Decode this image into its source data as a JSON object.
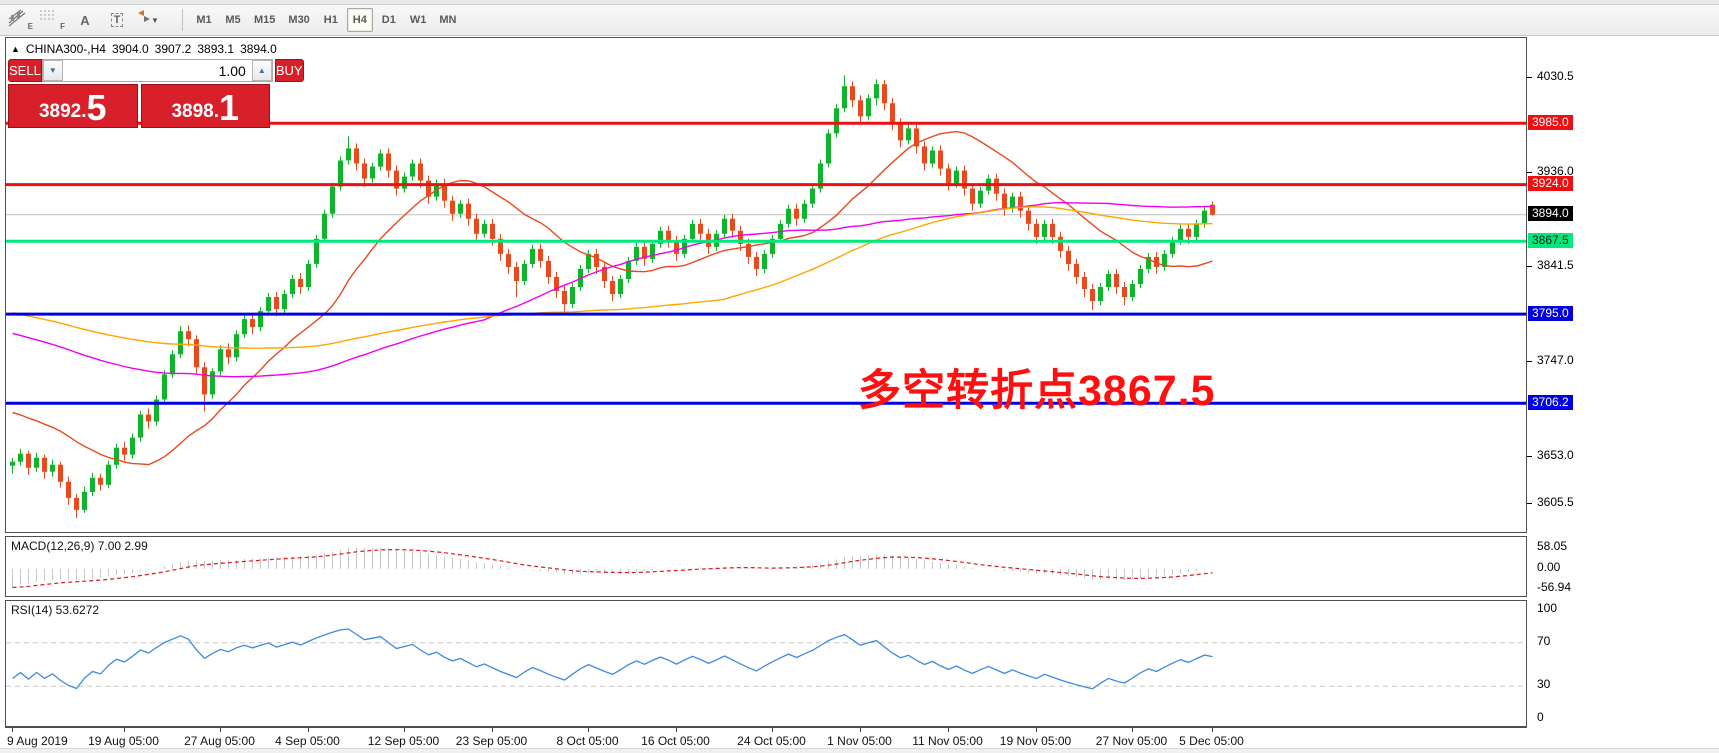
{
  "toolbar": {
    "tools": [
      {
        "letter": "E"
      },
      {
        "letter": "F"
      },
      {
        "letter": "A"
      },
      {
        "letter": "T"
      },
      {
        "letter": ""
      }
    ],
    "timeframes": [
      "M1",
      "M5",
      "M15",
      "M30",
      "H1",
      "H4",
      "D1",
      "W1",
      "MN"
    ],
    "active_timeframe": "H4"
  },
  "symbol_bar": {
    "marker": "▲",
    "name": "CHINA300-,H4",
    "open": "3904.0",
    "high": "3907.2",
    "low": "3893.1",
    "close": "3894.0"
  },
  "trade_panel": {
    "sell_label": "SELL",
    "buy_label": "BUY",
    "volume": "1.00",
    "spin_down": "▼",
    "spin_up": "▲",
    "sell_price_main": "3892.",
    "sell_price_big": "5",
    "buy_price_main": "3898.",
    "buy_price_big": "1"
  },
  "annotation": {
    "text": "多空转折点3867.5",
    "color": "#ff0f0f"
  },
  "colors": {
    "bull": "#0fb32c",
    "bear": "#e8491e",
    "ma_fast": "#e8491e",
    "ma_mid": "#ee00ee",
    "ma_slow": "#ffa500",
    "macd_hist": "#c6c6c6",
    "macd_signal": "#e01818",
    "rsi_line": "#3c8be0",
    "grid_dash": "#c8c8c8",
    "current_line": "#c0c0c0"
  },
  "chart_data": {
    "type": "candlestick",
    "symbol": "CHINA300-",
    "timeframe": "H4",
    "y_axis": {
      "min": 3578,
      "max": 4070,
      "ticks": [
        "4030.5",
        "3936.0",
        "3841.5",
        "3747.0",
        "3653.0",
        "3605.5"
      ]
    },
    "hlines": [
      {
        "price": 3985.0,
        "label": "3985.0",
        "color": "#ee1010",
        "width": 3,
        "badge_bg": "#ee1010",
        "badge_fg": "#ffffff"
      },
      {
        "price": 3924.0,
        "label": "3924.0",
        "color": "#ee1010",
        "width": 3,
        "badge_bg": "#ee1010",
        "badge_fg": "#ffffff"
      },
      {
        "price": 3894.0,
        "label": "3894.0",
        "color": "#c0c0c0",
        "width": 1,
        "badge_bg": "#000000",
        "badge_fg": "#ffffff"
      },
      {
        "price": 3867.5,
        "label": "3867.5",
        "color": "#00e97c",
        "width": 3,
        "badge_bg": "#00e97c",
        "badge_fg": "#1a1a1a"
      },
      {
        "price": 3795.0,
        "label": "3795.0",
        "color": "#0000e0",
        "width": 3,
        "badge_bg": "#0000e0",
        "badge_fg": "#ffffff"
      },
      {
        "price": 3706.2,
        "label": "3706.2",
        "color": "#0000e0",
        "width": 3,
        "badge_bg": "#0000e0",
        "badge_fg": "#ffffff"
      }
    ],
    "moving_averages": [
      {
        "period": 18,
        "seed": 3700,
        "color": "#e8491e"
      },
      {
        "period": 60,
        "seed": 3778,
        "color": "#ee00ee"
      },
      {
        "period": 90,
        "seed": 3798,
        "color": "#ffa500"
      }
    ],
    "macd": {
      "label": "MACD(12,26,9) 7.00 2.99",
      "fast": 12,
      "slow": 26,
      "signal": 9,
      "seed_fast": 3630,
      "seed_slow": 3685,
      "seed_signal": -52,
      "axis": [
        {
          "v": 58.05,
          "t": "58.05"
        },
        {
          "v": 0,
          "t": "0.00"
        },
        {
          "v": -56.94,
          "t": "-56.94"
        }
      ]
    },
    "rsi": {
      "label": "RSI(14) 53.6272",
      "period": 14,
      "seed_gain": 2.6,
      "seed_loss": 4.4,
      "axis": [
        {
          "v": 100,
          "t": "100"
        },
        {
          "v": 70,
          "t": "70"
        },
        {
          "v": 30,
          "t": "30"
        },
        {
          "v": 0,
          "t": "0"
        }
      ],
      "dashed_levels": [
        70,
        30
      ]
    },
    "x_labels": [
      {
        "text": "9 Aug 2019",
        "i": 0
      },
      {
        "text": "19 Aug 05:00",
        "i": 14
      },
      {
        "text": "27 Aug 05:00",
        "i": 26
      },
      {
        "text": "4 Sep 05:00",
        "i": 37
      },
      {
        "text": "12 Sep 05:00",
        "i": 49
      },
      {
        "text": "23 Sep 05:00",
        "i": 60
      },
      {
        "text": "8 Oct 05:00",
        "i": 72
      },
      {
        "text": "16 Oct 05:00",
        "i": 83
      },
      {
        "text": "24 Oct 05:00",
        "i": 95
      },
      {
        "text": "1 Nov 05:00",
        "i": 106
      },
      {
        "text": "11 Nov 05:00",
        "i": 117
      },
      {
        "text": "19 Nov 05:00",
        "i": 128
      },
      {
        "text": "27 Nov 05:00",
        "i": 140
      },
      {
        "text": "5 Dec 05:00",
        "i": 150
      }
    ],
    "ohlc": [
      [
        3644,
        3652,
        3636,
        3648
      ],
      [
        3648,
        3661,
        3644,
        3656
      ],
      [
        3656,
        3659,
        3635,
        3642
      ],
      [
        3642,
        3657,
        3638,
        3652
      ],
      [
        3652,
        3655,
        3631,
        3638
      ],
      [
        3638,
        3650,
        3633,
        3645
      ],
      [
        3645,
        3648,
        3622,
        3628
      ],
      [
        3628,
        3633,
        3605,
        3612
      ],
      [
        3612,
        3616,
        3592,
        3600
      ],
      [
        3600,
        3623,
        3597,
        3618
      ],
      [
        3618,
        3637,
        3614,
        3632
      ],
      [
        3632,
        3636,
        3619,
        3625
      ],
      [
        3625,
        3649,
        3622,
        3645
      ],
      [
        3645,
        3666,
        3641,
        3662
      ],
      [
        3662,
        3668,
        3649,
        3655
      ],
      [
        3655,
        3676,
        3651,
        3672
      ],
      [
        3672,
        3699,
        3668,
        3695
      ],
      [
        3695,
        3701,
        3681,
        3688
      ],
      [
        3688,
        3714,
        3684,
        3710
      ],
      [
        3710,
        3739,
        3706,
        3735
      ],
      [
        3735,
        3759,
        3731,
        3755
      ],
      [
        3755,
        3783,
        3751,
        3778
      ],
      [
        3778,
        3784,
        3763,
        3770
      ],
      [
        3770,
        3774,
        3736,
        3742
      ],
      [
        3742,
        3747,
        3698,
        3715
      ],
      [
        3715,
        3741,
        3711,
        3738
      ],
      [
        3738,
        3764,
        3734,
        3760
      ],
      [
        3760,
        3766,
        3745,
        3752
      ],
      [
        3752,
        3779,
        3748,
        3775
      ],
      [
        3775,
        3794,
        3771,
        3790
      ],
      [
        3790,
        3796,
        3775,
        3782
      ],
      [
        3782,
        3802,
        3778,
        3798
      ],
      [
        3798,
        3816,
        3794,
        3812
      ],
      [
        3812,
        3817,
        3793,
        3800
      ],
      [
        3800,
        3819,
        3796,
        3815
      ],
      [
        3815,
        3834,
        3811,
        3830
      ],
      [
        3830,
        3836,
        3815,
        3822
      ],
      [
        3822,
        3849,
        3818,
        3845
      ],
      [
        3845,
        3874,
        3841,
        3870
      ],
      [
        3870,
        3899,
        3866,
        3895
      ],
      [
        3895,
        3926,
        3891,
        3922
      ],
      [
        3922,
        3952,
        3918,
        3948
      ],
      [
        3948,
        3972,
        3944,
        3960
      ],
      [
        3960,
        3965,
        3938,
        3945
      ],
      [
        3945,
        3950,
        3922,
        3930
      ],
      [
        3930,
        3946,
        3926,
        3942
      ],
      [
        3942,
        3959,
        3938,
        3955
      ],
      [
        3955,
        3960,
        3931,
        3938
      ],
      [
        3938,
        3943,
        3913,
        3920
      ],
      [
        3920,
        3936,
        3916,
        3932
      ],
      [
        3932,
        3949,
        3928,
        3945
      ],
      [
        3945,
        3950,
        3921,
        3928
      ],
      [
        3928,
        3933,
        3905,
        3912
      ],
      [
        3912,
        3929,
        3908,
        3925
      ],
      [
        3925,
        3930,
        3901,
        3908
      ],
      [
        3908,
        3913,
        3888,
        3895
      ],
      [
        3895,
        3909,
        3891,
        3905
      ],
      [
        3905,
        3910,
        3883,
        3890
      ],
      [
        3890,
        3895,
        3868,
        3875
      ],
      [
        3875,
        3889,
        3871,
        3885
      ],
      [
        3885,
        3890,
        3863,
        3870
      ],
      [
        3870,
        3875,
        3848,
        3855
      ],
      [
        3855,
        3860,
        3835,
        3842
      ],
      [
        3842,
        3847,
        3812,
        3828
      ],
      [
        3828,
        3849,
        3824,
        3845
      ],
      [
        3845,
        3864,
        3841,
        3860
      ],
      [
        3860,
        3865,
        3841,
        3848
      ],
      [
        3848,
        3853,
        3825,
        3832
      ],
      [
        3832,
        3837,
        3811,
        3818
      ],
      [
        3818,
        3823,
        3796,
        3805
      ],
      [
        3805,
        3826,
        3801,
        3822
      ],
      [
        3822,
        3844,
        3818,
        3840
      ],
      [
        3840,
        3859,
        3836,
        3855
      ],
      [
        3855,
        3860,
        3835,
        3842
      ],
      [
        3842,
        3847,
        3821,
        3828
      ],
      [
        3828,
        3833,
        3808,
        3815
      ],
      [
        3815,
        3834,
        3811,
        3830
      ],
      [
        3830,
        3852,
        3826,
        3848
      ],
      [
        3848,
        3866,
        3844,
        3862
      ],
      [
        3862,
        3867,
        3843,
        3850
      ],
      [
        3850,
        3869,
        3846,
        3865
      ],
      [
        3865,
        3882,
        3861,
        3878
      ],
      [
        3878,
        3883,
        3861,
        3868
      ],
      [
        3868,
        3873,
        3848,
        3855
      ],
      [
        3855,
        3874,
        3851,
        3870
      ],
      [
        3870,
        3889,
        3866,
        3885
      ],
      [
        3885,
        3890,
        3868,
        3875
      ],
      [
        3875,
        3880,
        3855,
        3862
      ],
      [
        3862,
        3879,
        3858,
        3875
      ],
      [
        3875,
        3894,
        3871,
        3890
      ],
      [
        3890,
        3895,
        3871,
        3878
      ],
      [
        3878,
        3883,
        3858,
        3865
      ],
      [
        3865,
        3870,
        3845,
        3852
      ],
      [
        3852,
        3857,
        3833,
        3840
      ],
      [
        3840,
        3859,
        3836,
        3855
      ],
      [
        3855,
        3874,
        3851,
        3870
      ],
      [
        3870,
        3889,
        3866,
        3885
      ],
      [
        3885,
        3904,
        3881,
        3900
      ],
      [
        3900,
        3905,
        3883,
        3890
      ],
      [
        3890,
        3909,
        3886,
        3905
      ],
      [
        3905,
        3924,
        3901,
        3920
      ],
      [
        3920,
        3949,
        3916,
        3945
      ],
      [
        3945,
        3979,
        3941,
        3975
      ],
      [
        3975,
        4004,
        3971,
        4000
      ],
      [
        4000,
        4033,
        3996,
        4022
      ],
      [
        4022,
        4027,
        4001,
        4008
      ],
      [
        4008,
        4013,
        3985,
        3992
      ],
      [
        3992,
        4014,
        3988,
        4010
      ],
      [
        4010,
        4029,
        4003,
        4024
      ],
      [
        4024,
        4028,
        3998,
        4005
      ],
      [
        4005,
        4010,
        3978,
        3985
      ],
      [
        3985,
        3990,
        3961,
        3968
      ],
      [
        3968,
        3984,
        3964,
        3980
      ],
      [
        3980,
        3985,
        3955,
        3962
      ],
      [
        3962,
        3967,
        3938,
        3945
      ],
      [
        3945,
        3962,
        3941,
        3958
      ],
      [
        3958,
        3963,
        3933,
        3940
      ],
      [
        3940,
        3945,
        3918,
        3925
      ],
      [
        3925,
        3942,
        3921,
        3938
      ],
      [
        3938,
        3943,
        3913,
        3920
      ],
      [
        3920,
        3925,
        3898,
        3905
      ],
      [
        3905,
        3922,
        3901,
        3918
      ],
      [
        3918,
        3934,
        3914,
        3930
      ],
      [
        3930,
        3935,
        3908,
        3915
      ],
      [
        3915,
        3920,
        3893,
        3900
      ],
      [
        3900,
        3916,
        3896,
        3912
      ],
      [
        3912,
        3917,
        3891,
        3898
      ],
      [
        3898,
        3903,
        3878,
        3885
      ],
      [
        3885,
        3890,
        3865,
        3872
      ],
      [
        3872,
        3889,
        3868,
        3885
      ],
      [
        3885,
        3890,
        3865,
        3872
      ],
      [
        3872,
        3877,
        3851,
        3858
      ],
      [
        3858,
        3863,
        3838,
        3845
      ],
      [
        3845,
        3850,
        3825,
        3832
      ],
      [
        3832,
        3837,
        3812,
        3820
      ],
      [
        3820,
        3825,
        3799,
        3808
      ],
      [
        3808,
        3826,
        3804,
        3822
      ],
      [
        3822,
        3839,
        3818,
        3835
      ],
      [
        3835,
        3840,
        3815,
        3822
      ],
      [
        3822,
        3827,
        3804,
        3812
      ],
      [
        3812,
        3829,
        3808,
        3825
      ],
      [
        3825,
        3844,
        3821,
        3840
      ],
      [
        3840,
        3856,
        3836,
        3852
      ],
      [
        3852,
        3857,
        3835,
        3842
      ],
      [
        3842,
        3859,
        3838,
        3855
      ],
      [
        3855,
        3872,
        3851,
        3868
      ],
      [
        3868,
        3884,
        3864,
        3880
      ],
      [
        3880,
        3885,
        3865,
        3872
      ],
      [
        3872,
        3889,
        3868,
        3885
      ],
      [
        3885,
        3902,
        3881,
        3898
      ],
      [
        3904,
        3907.2,
        3893.1,
        3894
      ]
    ]
  }
}
